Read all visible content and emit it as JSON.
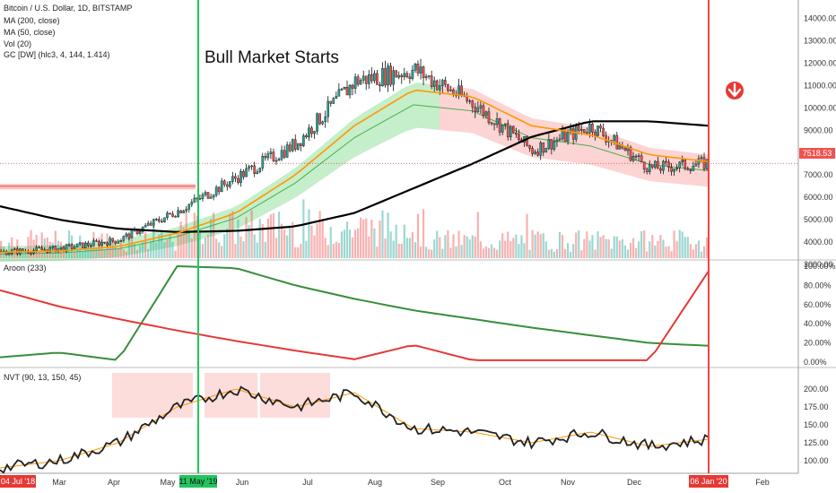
{
  "legend": {
    "symbol": "Bitcoin / U.S. Dollar, 1D, BITSTAMP",
    "ma200": "MA (200, close)",
    "ma50": "MA (50, close)",
    "vol": "Vol (20)",
    "gc": "GC [DW] (hlc3, 4, 144, 1.414)",
    "aroon": "Aroon (233)",
    "nvt": "NVT (90, 13, 150, 45)"
  },
  "annotation": "Bull Market Starts",
  "price_badge": "7518.53",
  "date_badges": {
    "start": "04 Jul '18",
    "mid": "11 May '19",
    "end": "06 Jan '20"
  },
  "colors": {
    "up": "#26a69a",
    "down": "#ef5350",
    "ma200": "#000000",
    "ma50": "#ff9800",
    "aroon_up": "#388e3c",
    "aroon_down": "#e53935",
    "nvt": "#222222",
    "nvt_hot": "#e53935",
    "green_line": "#22c55e",
    "red_line": "#ef4444"
  },
  "chart_data": [
    {
      "type": "candlestick",
      "title": "Bitcoin / U.S. Dollar, 1D, BITSTAMP",
      "x": [
        "04 Jul '18",
        "Mar",
        "Apr",
        "May",
        "11 May '19",
        "Jun",
        "Jul",
        "Aug",
        "Sep",
        "Oct",
        "Nov",
        "Dec",
        "06 Jan '20"
      ],
      "close": [
        3550,
        3700,
        4100,
        5400,
        6900,
        8400,
        11200,
        11700,
        10200,
        8100,
        9200,
        7300,
        7518.53
      ],
      "series": [
        {
          "name": "MA (200, close)",
          "values": [
            5600,
            5000,
            4600,
            4450,
            4500,
            4700,
            5300,
            6400,
            7500,
            8700,
            9400,
            9400,
            9200
          ]
        },
        {
          "name": "MA (50, close)",
          "values": [
            3550,
            3600,
            3800,
            4400,
            5300,
            7000,
            9200,
            10800,
            10500,
            9200,
            8800,
            7900,
            7600
          ]
        }
      ],
      "yticks": [
        "3000.00",
        "4000.00",
        "5000.00",
        "6000.00",
        "7000.00",
        "8000.00",
        "9000.00",
        "10000.00",
        "11000.00",
        "12000.00",
        "13000.00",
        "14000.00"
      ],
      "ylim": [
        2800,
        14500
      ],
      "xticks": [
        "Mar",
        "Apr",
        "May",
        "Jun",
        "Jul",
        "Aug",
        "Sep",
        "Oct",
        "Nov",
        "Dec",
        "Feb"
      ]
    },
    {
      "type": "line",
      "title": "Aroon (233)",
      "series": [
        {
          "name": "Aroon Up",
          "values": [
            5,
            10,
            2,
            100,
            98,
            80,
            66,
            54,
            45,
            36,
            28,
            20,
            17
          ]
        },
        {
          "name": "Aroon Down",
          "values": [
            75,
            58,
            45,
            33,
            22,
            12,
            3,
            18,
            2,
            2,
            2,
            2,
            95
          ]
        }
      ],
      "yticks": [
        "0.00%",
        "20.00%",
        "40.00%",
        "60.00%",
        "80.00%",
        "100.00%"
      ],
      "ylim": [
        0,
        100
      ]
    },
    {
      "type": "line",
      "title": "NVT (90, 13, 150, 45)",
      "series": [
        {
          "name": "NVT",
          "values": [
            90,
            100,
            125,
            175,
            200,
            175,
            195,
            145,
            140,
            125,
            140,
            120,
            130
          ]
        }
      ],
      "yticks": [
        "100.00",
        "125.00",
        "150.00",
        "175.00",
        "200.00"
      ],
      "ylim": [
        85,
        225
      ]
    }
  ]
}
